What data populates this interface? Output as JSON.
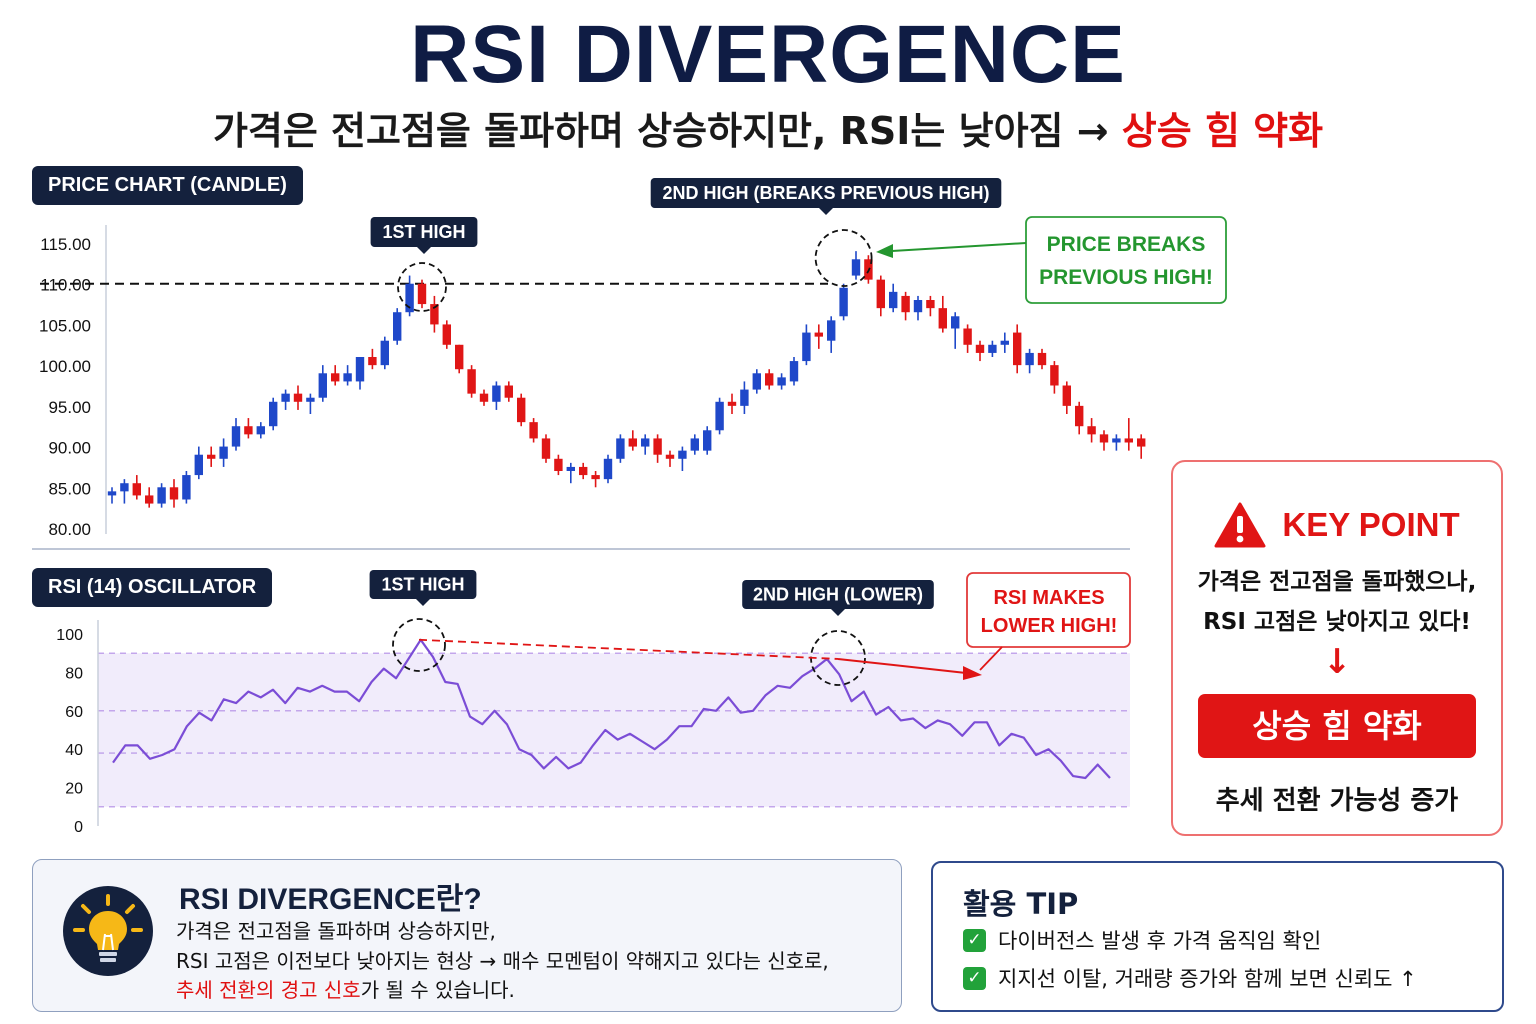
{
  "title": "RSI DIVERGENCE",
  "subtitle": {
    "main": "가격은 전고점을 돌파하며 상승하지만, RSI는 낮아짐 →",
    "emphasis": "상승 힘 약화"
  },
  "price_panel": {
    "label": "PRICE CHART (CANDLE)"
  },
  "rsi_panel": {
    "label": "RSI (14) OSCILLATOR"
  },
  "annotations": {
    "price_first_high": "1ST HIGH",
    "price_second_high": "2ND HIGH (BREAKS PREVIOUS HIGH)",
    "price_callout": [
      "PRICE BREAKS",
      "PREVIOUS HIGH!"
    ],
    "rsi_first_high": "1ST HIGH",
    "rsi_second_high": "2ND HIGH (LOWER)",
    "rsi_callout": [
      "RSI MAKES",
      "LOWER HIGH!"
    ]
  },
  "colors": {
    "up": "#1f48c9",
    "down": "#e01616",
    "rsi_line": "#7b4dd6",
    "accent_red": "#e01515",
    "navy": "#14213d"
  },
  "key_point": {
    "icon": "warning-icon",
    "title": "KEY POINT",
    "lines": [
      "가격은 전고점을 돌파했으나,",
      "RSI 고점은 낮아지고 있다!"
    ],
    "arrow": "↓",
    "button": "상승 힘 약화",
    "footer": "추세 전환 가능성 증가"
  },
  "info": {
    "icon": "lightbulb-icon",
    "title": "RSI DIVERGENCE란?",
    "line1": "가격은 전고점을 돌파하며 상승하지만,",
    "line2": "RSI 고점은 이전보다 낮아지는 현상 → 매수 모멘텀이 약해지고 있다는 신호로,",
    "line3_red": "추세 전환의 경고 신호",
    "line3_rest": "가 될 수 있습니다."
  },
  "tip": {
    "title": "활용 TIP",
    "items": [
      "다이버전스 발생 후 가격 움직임 확인",
      "지지선 이탈, 거래량 증가와 함께 보면 신뢰도 ↑"
    ]
  },
  "chart_data": [
    {
      "type": "candlestick",
      "title": "PRICE CHART (CANDLE)",
      "ylim": [
        80,
        115
      ],
      "yticks": [
        "115.00",
        "110.00",
        "105.00",
        "100.00",
        "95.00",
        "90.00",
        "85.00",
        "80.00"
      ],
      "reference_line": 110,
      "candles": [
        {
          "o": 84,
          "h": 85,
          "l": 83,
          "c": 84.5
        },
        {
          "o": 84.5,
          "h": 86,
          "l": 83,
          "c": 85.5
        },
        {
          "o": 85.5,
          "h": 86.5,
          "l": 83.5,
          "c": 84
        },
        {
          "o": 84,
          "h": 85,
          "l": 82.5,
          "c": 83
        },
        {
          "o": 83,
          "h": 85.5,
          "l": 82.5,
          "c": 85
        },
        {
          "o": 85,
          "h": 86,
          "l": 82.5,
          "c": 83.5
        },
        {
          "o": 83.5,
          "h": 87,
          "l": 83,
          "c": 86.5
        },
        {
          "o": 86.5,
          "h": 90,
          "l": 86,
          "c": 89
        },
        {
          "o": 89,
          "h": 90,
          "l": 87.5,
          "c": 88.5
        },
        {
          "o": 88.5,
          "h": 91,
          "l": 87.5,
          "c": 90
        },
        {
          "o": 90,
          "h": 93.5,
          "l": 89.5,
          "c": 92.5
        },
        {
          "o": 92.5,
          "h": 93.5,
          "l": 91,
          "c": 91.5
        },
        {
          "o": 91.5,
          "h": 93,
          "l": 91,
          "c": 92.5
        },
        {
          "o": 92.5,
          "h": 96,
          "l": 92,
          "c": 95.5
        },
        {
          "o": 95.5,
          "h": 97,
          "l": 94.5,
          "c": 96.5
        },
        {
          "o": 96.5,
          "h": 97.5,
          "l": 94.5,
          "c": 95.5
        },
        {
          "o": 95.5,
          "h": 96.5,
          "l": 94,
          "c": 96
        },
        {
          "o": 96,
          "h": 100,
          "l": 95.5,
          "c": 99
        },
        {
          "o": 99,
          "h": 100,
          "l": 97.5,
          "c": 98
        },
        {
          "o": 98,
          "h": 100,
          "l": 97.5,
          "c": 99
        },
        {
          "o": 98,
          "h": 101,
          "l": 97,
          "c": 101
        },
        {
          "o": 101,
          "h": 102,
          "l": 99.5,
          "c": 100
        },
        {
          "o": 100,
          "h": 103.5,
          "l": 99.5,
          "c": 103
        },
        {
          "o": 103,
          "h": 107,
          "l": 102.5,
          "c": 106.5
        },
        {
          "o": 106.5,
          "h": 111,
          "l": 106,
          "c": 110
        },
        {
          "o": 110,
          "h": 110.5,
          "l": 107,
          "c": 107.5
        },
        {
          "o": 107.5,
          "h": 108.5,
          "l": 104,
          "c": 105
        },
        {
          "o": 105,
          "h": 105.5,
          "l": 102,
          "c": 102.5
        },
        {
          "o": 102.5,
          "h": 102.5,
          "l": 99,
          "c": 99.5
        },
        {
          "o": 99.5,
          "h": 100,
          "l": 96,
          "c": 96.5
        },
        {
          "o": 96.5,
          "h": 97,
          "l": 95,
          "c": 95.5
        },
        {
          "o": 95.5,
          "h": 98,
          "l": 94.5,
          "c": 97.5
        },
        {
          "o": 97.5,
          "h": 98,
          "l": 95.5,
          "c": 96
        },
        {
          "o": 96,
          "h": 96.5,
          "l": 92.5,
          "c": 93
        },
        {
          "o": 93,
          "h": 93.5,
          "l": 90.5,
          "c": 91
        },
        {
          "o": 91,
          "h": 91.5,
          "l": 88,
          "c": 88.5
        },
        {
          "o": 88.5,
          "h": 89,
          "l": 86.5,
          "c": 87
        },
        {
          "o": 87,
          "h": 88,
          "l": 85.5,
          "c": 87.5
        },
        {
          "o": 87.5,
          "h": 88,
          "l": 86,
          "c": 86.5
        },
        {
          "o": 86.5,
          "h": 87,
          "l": 85,
          "c": 86
        },
        {
          "o": 86,
          "h": 89,
          "l": 85.5,
          "c": 88.5
        },
        {
          "o": 88.5,
          "h": 91.5,
          "l": 88,
          "c": 91
        },
        {
          "o": 91,
          "h": 92,
          "l": 89.5,
          "c": 90
        },
        {
          "o": 90,
          "h": 91.5,
          "l": 89,
          "c": 91
        },
        {
          "o": 91,
          "h": 91.5,
          "l": 88,
          "c": 89
        },
        {
          "o": 89,
          "h": 89.5,
          "l": 87.5,
          "c": 88.5
        },
        {
          "o": 88.5,
          "h": 90,
          "l": 87,
          "c": 89.5
        },
        {
          "o": 89.5,
          "h": 91.5,
          "l": 89,
          "c": 91
        },
        {
          "o": 89.5,
          "h": 92.5,
          "l": 89,
          "c": 92
        },
        {
          "o": 92,
          "h": 96,
          "l": 91.5,
          "c": 95.5
        },
        {
          "o": 95.5,
          "h": 96.5,
          "l": 94,
          "c": 95
        },
        {
          "o": 95,
          "h": 98,
          "l": 94,
          "c": 97
        },
        {
          "o": 97,
          "h": 99.5,
          "l": 96.5,
          "c": 99
        },
        {
          "o": 99,
          "h": 99.5,
          "l": 97,
          "c": 97.5
        },
        {
          "o": 97.5,
          "h": 99,
          "l": 97,
          "c": 98.5
        },
        {
          "o": 98,
          "h": 101,
          "l": 97.5,
          "c": 100.5
        },
        {
          "o": 100.5,
          "h": 105,
          "l": 100,
          "c": 104
        },
        {
          "o": 104,
          "h": 105,
          "l": 102,
          "c": 103.5
        },
        {
          "o": 103,
          "h": 106,
          "l": 101.5,
          "c": 105.5
        },
        {
          "o": 106,
          "h": 110,
          "l": 105.5,
          "c": 109.5
        },
        {
          "o": 111,
          "h": 114,
          "l": 110.5,
          "c": 113
        },
        {
          "o": 113,
          "h": 113.5,
          "l": 110,
          "c": 110.5
        },
        {
          "o": 110.5,
          "h": 111,
          "l": 106,
          "c": 107
        },
        {
          "o": 107,
          "h": 110,
          "l": 106.5,
          "c": 109
        },
        {
          "o": 108.5,
          "h": 109,
          "l": 105.5,
          "c": 106.5
        },
        {
          "o": 106.5,
          "h": 108.5,
          "l": 105.5,
          "c": 108
        },
        {
          "o": 108,
          "h": 108.5,
          "l": 106,
          "c": 107
        },
        {
          "o": 107,
          "h": 108.5,
          "l": 104,
          "c": 104.5
        },
        {
          "o": 104.5,
          "h": 106.5,
          "l": 102,
          "c": 106
        },
        {
          "o": 104.5,
          "h": 105,
          "l": 101.5,
          "c": 102.5
        },
        {
          "o": 102.5,
          "h": 103,
          "l": 100.5,
          "c": 101.5
        },
        {
          "o": 101.5,
          "h": 103,
          "l": 101,
          "c": 102.5
        },
        {
          "o": 102.5,
          "h": 104,
          "l": 101.5,
          "c": 103
        },
        {
          "o": 104,
          "h": 105,
          "l": 99,
          "c": 100
        },
        {
          "o": 100,
          "h": 102,
          "l": 99,
          "c": 101.5
        },
        {
          "o": 101.5,
          "h": 102,
          "l": 99.5,
          "c": 100
        },
        {
          "o": 100,
          "h": 100.5,
          "l": 96.5,
          "c": 97.5
        },
        {
          "o": 97.5,
          "h": 98,
          "l": 94,
          "c": 95
        },
        {
          "o": 95,
          "h": 95.5,
          "l": 91.5,
          "c": 92.5
        },
        {
          "o": 92.5,
          "h": 93.5,
          "l": 90.5,
          "c": 91.5
        },
        {
          "o": 91.5,
          "h": 92,
          "l": 89.5,
          "c": 90.5
        },
        {
          "o": 90.5,
          "h": 91.5,
          "l": 89.5,
          "c": 91
        },
        {
          "o": 91,
          "h": 93.5,
          "l": 89.5,
          "c": 90.5
        },
        {
          "o": 91,
          "h": 91.5,
          "l": 88.5,
          "c": 90
        }
      ]
    },
    {
      "type": "line",
      "title": "RSI (14) OSCILLATOR",
      "ylim": [
        0,
        100
      ],
      "yticks": [
        "100",
        "80",
        "60",
        "40",
        "20",
        "0"
      ],
      "bands": [
        10,
        38,
        60,
        90
      ],
      "series": [
        {
          "values": [
            33,
            42,
            42,
            35,
            37,
            40,
            52,
            59,
            55,
            66,
            64,
            70,
            67,
            71,
            64,
            72,
            70,
            73,
            70,
            70,
            65,
            75,
            82,
            77,
            87,
            97,
            88,
            75,
            74,
            57,
            53,
            60,
            53,
            40,
            37,
            30,
            36,
            30,
            33,
            42,
            50,
            45,
            48,
            44,
            40,
            45,
            52,
            52,
            61,
            60,
            67,
            59,
            60,
            68,
            73,
            72,
            78,
            82,
            87,
            79,
            65,
            70,
            58,
            62,
            55,
            56,
            51,
            55,
            53,
            47,
            54,
            54,
            42,
            48,
            46,
            37,
            40,
            34,
            26,
            25,
            32,
            25
          ]
        }
      ]
    }
  ]
}
